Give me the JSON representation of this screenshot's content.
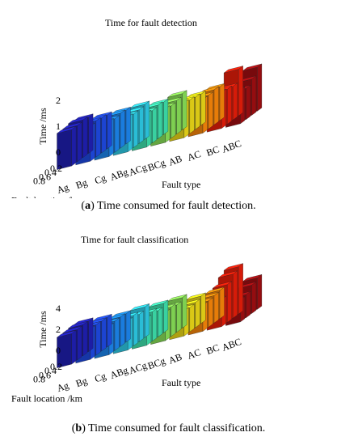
{
  "chart_data": [
    {
      "type": "bar3d",
      "title": "Time for fault detection",
      "xlabel": "Fault location /km",
      "ylabel": "Fault type",
      "zlabel": "Time /ms",
      "zlim": [
        0,
        2
      ],
      "zticks": [
        "0",
        "1",
        "2"
      ],
      "locations": [
        "0.2",
        "0.4",
        "0.6",
        "0.8"
      ],
      "fault_types": [
        "Ag",
        "Bg",
        "Cg",
        "ABg",
        "ACg",
        "BCg",
        "AB",
        "AC",
        "BC",
        "ABC"
      ],
      "colors": [
        "#2020b8",
        "#1f4be8",
        "#1d8af5",
        "#2fd2ee",
        "#3fe8b2",
        "#8ce75a",
        "#f2de18",
        "#ff8a0a",
        "#ee1e0a",
        "#a50e12"
      ],
      "values": [
        [
          1.4,
          1.45,
          1.4,
          1.4
        ],
        [
          1.3,
          1.35,
          1.4,
          1.35
        ],
        [
          1.3,
          1.35,
          1.3,
          1.35
        ],
        [
          1.35,
          1.3,
          1.3,
          1.35
        ],
        [
          1.25,
          1.3,
          1.25,
          1.3
        ],
        [
          1.4,
          1.3,
          1.25,
          1.3
        ],
        [
          1.2,
          1.25,
          1.3,
          1.35
        ],
        [
          1.3,
          1.35,
          1.3,
          1.3
        ],
        [
          1.8,
          1.3,
          1.35,
          1.4
        ],
        [
          1.7,
          1.4,
          1.2,
          1.3
        ]
      ],
      "caption_tag": "a",
      "caption_text": "Time consumed for fault detection."
    },
    {
      "type": "bar3d",
      "title": "Time for fault classification",
      "xlabel": "Fault location /km",
      "ylabel": "Fault type",
      "zlabel": "Time /ms",
      "zlim": [
        0,
        4
      ],
      "zticks": [
        "0",
        "2",
        "4"
      ],
      "locations": [
        "0.2",
        "0.4",
        "0.6",
        "0.8"
      ],
      "fault_types": [
        "Ag",
        "Bg",
        "Cg",
        "ABg",
        "ACg",
        "BCg",
        "AB",
        "AC",
        "BC",
        "ABC"
      ],
      "colors": [
        "#2020b8",
        "#1f4be8",
        "#1d8af5",
        "#2fd2ee",
        "#3fe8b2",
        "#8ce75a",
        "#f2de18",
        "#ff8a0a",
        "#ee1e0a",
        "#a50e12"
      ],
      "values": [
        [
          2.9,
          2.95,
          2.9,
          2.9
        ],
        [
          2.8,
          2.85,
          2.9,
          2.9
        ],
        [
          2.7,
          2.8,
          2.8,
          2.7
        ],
        [
          2.9,
          2.6,
          2.9,
          2.8
        ],
        [
          2.8,
          2.5,
          2.8,
          2.6
        ],
        [
          2.9,
          2.6,
          2.8,
          2.7
        ],
        [
          2.6,
          2.4,
          2.3,
          2.4
        ],
        [
          2.7,
          2.6,
          2.5,
          2.5
        ],
        [
          4.5,
          4.2,
          3.6,
          2.6
        ],
        [
          3.0,
          2.7,
          2.2,
          2.1
        ]
      ],
      "caption_tag": "b",
      "caption_text": "Time consumed for fault classification."
    }
  ]
}
